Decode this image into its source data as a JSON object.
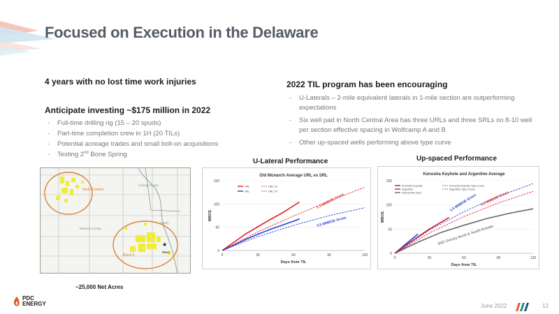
{
  "title": "Focused on Execution in the Delaware",
  "left": {
    "heading1": "4 years with no lost time work injuries",
    "heading2": "Anticipate investing ~$175 million in 2022",
    "bullets": [
      "Full-time drilling rig (15 – 20 spuds)",
      "Part-time completion crew in 1H (20 TILs)",
      "Potential acreage trades and small bolt-on acquisitions"
    ],
    "bullet4_pre": "Testing 2",
    "bullet4_sup": "nd",
    "bullet4_post": " Bone Spring"
  },
  "right": {
    "heading": "2022 TIL program has been encouraging",
    "bullets": [
      "U-Laterals – 2-mile equivalent laterals in 1-mile section are outperforming expectations",
      "Six well pad in North Central Area has three URLs and three SRLs on 8-10 well per section effective spacing in Wolfcamp A and B",
      "Other up-spaced wells performing above type curve"
    ]
  },
  "map": {
    "caption": "~25,000 Net Acres",
    "labels": {
      "north_central": "North Central",
      "block_4": "Block 4",
      "reeves": "Reeves County",
      "loving": "Loving County",
      "ward": "Ward"
    },
    "colors": {
      "acreage": "#f0ec3a",
      "ring": "#d9823b"
    }
  },
  "charts": {
    "ulateral": {
      "section_title": "U-Lateral Performance",
      "chart_title": "Old Monarch Average URL vs SRL",
      "legend": {
        "url": "URL",
        "srl": "SRL",
        "url_tc": "URL TC",
        "srl_tc": "SRL TC"
      },
      "annotation_url": "1.3 MMBOE Gross",
      "annotation_srl": "0.5 MMBOE Gross"
    },
    "upspaced": {
      "section_title": "Up-spaced Performance",
      "chart_title": "Kenosha Keyhole and Argentine Average",
      "legend": {
        "keyhole": "Kenosha Keyhole",
        "argentine": "Argentine",
        "grizzly": "Grizzly N/S 2021",
        "keyhole_tc": "Kenosha Keyhole Type Curve",
        "argentine_tc": "Argentine Type Curve"
      },
      "annotation_keyhole": "1.5 MMBOE Gross",
      "annotation_argentine": "1.2 MMBOE Gross",
      "annotation_grizzly": "2021 Grizzly North & South Actuals"
    }
  },
  "chart_data": [
    {
      "type": "line",
      "title": "Old Monarch Average URL vs SRL",
      "xlabel": "Days from TIL",
      "ylabel": "MBOE",
      "xlim": [
        0,
        120
      ],
      "ylim": [
        0,
        150
      ],
      "xticks": [
        0,
        30,
        60,
        90,
        120
      ],
      "yticks": [
        0,
        50,
        100,
        150
      ],
      "legend": "top-left",
      "series": [
        {
          "name": "URL",
          "color": "#e31b23",
          "style": "solid",
          "x": [
            0,
            10,
            20,
            30,
            40,
            50,
            60,
            65
          ],
          "y": [
            0,
            18,
            36,
            51,
            66,
            80,
            96,
            104
          ]
        },
        {
          "name": "SRL",
          "color": "#1f3fd6",
          "style": "solid",
          "x": [
            0,
            10,
            20,
            30,
            40,
            50,
            60,
            65
          ],
          "y": [
            0,
            12,
            24,
            35,
            45,
            54,
            63,
            68
          ]
        },
        {
          "name": "URL TC",
          "color": "#e31b23",
          "style": "dashed",
          "x": [
            0,
            30,
            60,
            90,
            120
          ],
          "y": [
            0,
            40,
            74,
            106,
            136
          ]
        },
        {
          "name": "SRL TC",
          "color": "#1f3fd6",
          "style": "dashed",
          "x": [
            0,
            30,
            60,
            90,
            120
          ],
          "y": [
            0,
            30,
            54,
            75,
            92
          ]
        }
      ]
    },
    {
      "type": "line",
      "title": "Kenosha Keyhole and Argentine Average",
      "xlabel": "Days from TIL",
      "ylabel": "MBOE",
      "xlim": [
        0,
        120
      ],
      "ylim": [
        0,
        150
      ],
      "xticks": [
        0,
        30,
        60,
        90,
        120
      ],
      "yticks": [
        0,
        50,
        100,
        150
      ],
      "legend": "top",
      "series": [
        {
          "name": "Kenosha Keyhole",
          "color": "#1f3fd6",
          "style": "solid",
          "x": [
            0,
            5,
            10,
            15,
            20
          ],
          "y": [
            0,
            10,
            20,
            30,
            40
          ]
        },
        {
          "name": "Argentine",
          "color": "#e31b23",
          "style": "solid",
          "x": [
            0,
            10,
            20,
            30,
            40,
            47
          ],
          "y": [
            0,
            17,
            34,
            50,
            64,
            74
          ]
        },
        {
          "name": "Grizzly N/S 2021",
          "color": "#666666",
          "style": "solid",
          "x": [
            0,
            20,
            40,
            60,
            80,
            100,
            120
          ],
          "y": [
            0,
            23,
            43,
            58,
            72,
            83,
            92
          ]
        },
        {
          "name": "Kenosha Keyhole Type Curve",
          "color": "#1f3fd6",
          "style": "dashed",
          "x": [
            0,
            30,
            60,
            90,
            120
          ],
          "y": [
            0,
            48,
            86,
            118,
            144
          ]
        },
        {
          "name": "Argentine Type Curve",
          "color": "#e31b23",
          "style": "dashed",
          "x": [
            0,
            30,
            60,
            90,
            120
          ],
          "y": [
            0,
            42,
            76,
            104,
            128
          ]
        }
      ]
    }
  ],
  "footer": {
    "logo_line1": "PDC",
    "logo_line2": "ENERGY",
    "date": "June 2022",
    "page": "12"
  }
}
